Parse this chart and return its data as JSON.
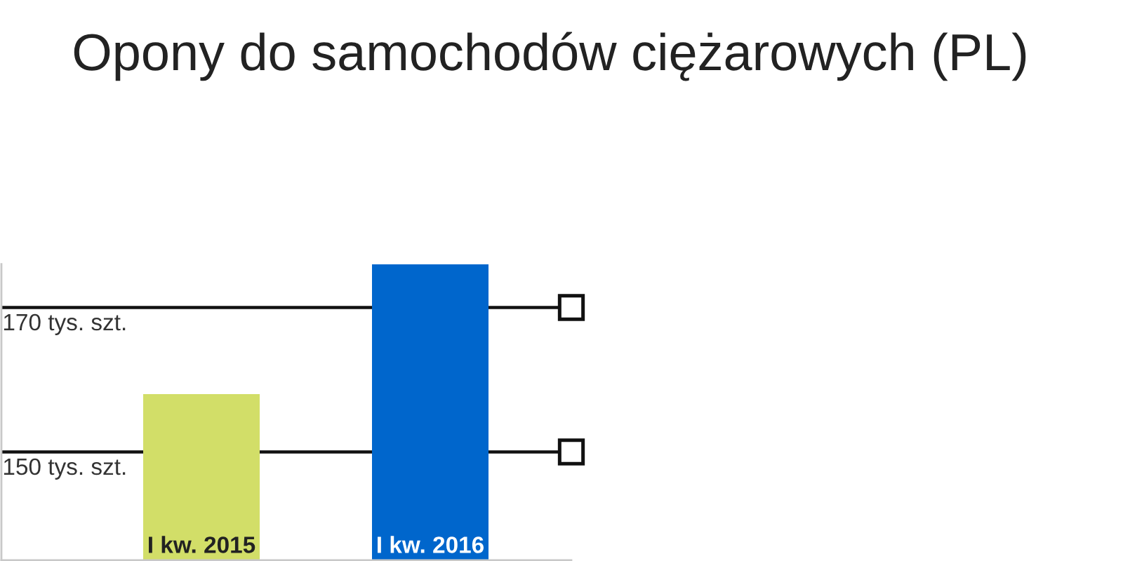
{
  "chart_data": {
    "type": "bar",
    "title": "Opony do samochodów ciężarowych (PL)",
    "categories": [
      "I kw. 2015",
      "I kw. 2016"
    ],
    "values": [
      158,
      176
    ],
    "colors": [
      "#d2de68",
      "#0066cc"
    ],
    "ylim": [
      135,
      176
    ],
    "yticks": [
      {
        "value": 150,
        "label": "150 tys. szt."
      },
      {
        "value": 170,
        "label": "170 tys. szt."
      }
    ],
    "grid": "y"
  }
}
